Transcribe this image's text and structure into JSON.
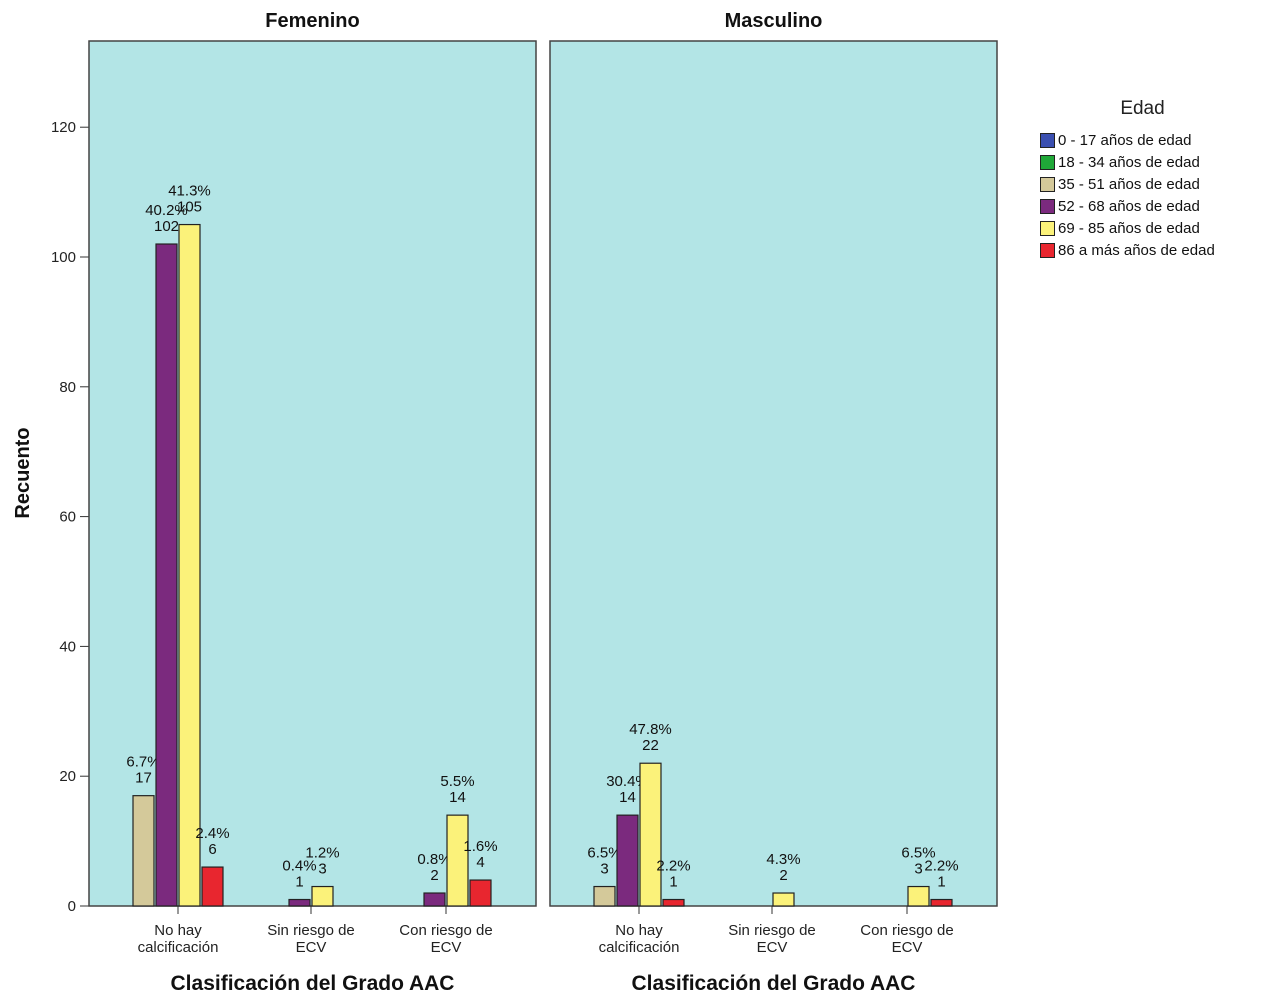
{
  "chart_data": {
    "type": "bar",
    "ylabel": "Recuento",
    "xlabel": "Clasificación del Grado AAC",
    "ylim": [
      0,
      133
    ],
    "yticks": [
      0,
      20,
      40,
      60,
      80,
      100,
      120
    ],
    "grid": false,
    "legend_position": "right",
    "legend_title": "Edad",
    "categories": [
      [
        "No hay",
        "calcificación"
      ],
      [
        "Sin riesgo de",
        "ECV"
      ],
      [
        "Con riesgo de",
        "ECV"
      ]
    ],
    "series": [
      {
        "name": "0 - 17 años de edad",
        "color": "#3a4fb0"
      },
      {
        "name": "18 - 34 años de edad",
        "color": "#1fa838"
      },
      {
        "name": "35 - 51 años de edad",
        "color": "#d4c99a"
      },
      {
        "name": "52 - 68 años de edad",
        "color": "#7b2a7e"
      },
      {
        "name": "69 - 85 años de edad",
        "color": "#fbf27a"
      },
      {
        "name": "86 a  más años de edad",
        "color": "#e8262f"
      }
    ],
    "panels": [
      {
        "title": "Femenino",
        "bars": [
          {
            "category": 0,
            "series": 2,
            "value": 17,
            "pct": "6.7%"
          },
          {
            "category": 0,
            "series": 3,
            "value": 102,
            "pct": "40.2%"
          },
          {
            "category": 0,
            "series": 4,
            "value": 105,
            "pct": "41.3%"
          },
          {
            "category": 0,
            "series": 5,
            "value": 6,
            "pct": "2.4%"
          },
          {
            "category": 1,
            "series": 3,
            "value": 1,
            "pct": "0.4%"
          },
          {
            "category": 1,
            "series": 4,
            "value": 3,
            "pct": "1.2%"
          },
          {
            "category": 2,
            "series": 3,
            "value": 2,
            "pct": "0.8%"
          },
          {
            "category": 2,
            "series": 4,
            "value": 14,
            "pct": "5.5%"
          },
          {
            "category": 2,
            "series": 5,
            "value": 4,
            "pct": "1.6%"
          }
        ]
      },
      {
        "title": "Masculino",
        "bars": [
          {
            "category": 0,
            "series": 2,
            "value": 3,
            "pct": "6.5%"
          },
          {
            "category": 0,
            "series": 3,
            "value": 14,
            "pct": "30.4%"
          },
          {
            "category": 0,
            "series": 4,
            "value": 22,
            "pct": "47.8%"
          },
          {
            "category": 0,
            "series": 5,
            "value": 1,
            "pct": "2.2%"
          },
          {
            "category": 1,
            "series": 4,
            "value": 2,
            "pct": "4.3%"
          },
          {
            "category": 2,
            "series": 4,
            "value": 3,
            "pct": "6.5%"
          },
          {
            "category": 2,
            "series": 5,
            "value": 1,
            "pct": "2.2%"
          }
        ]
      }
    ]
  }
}
